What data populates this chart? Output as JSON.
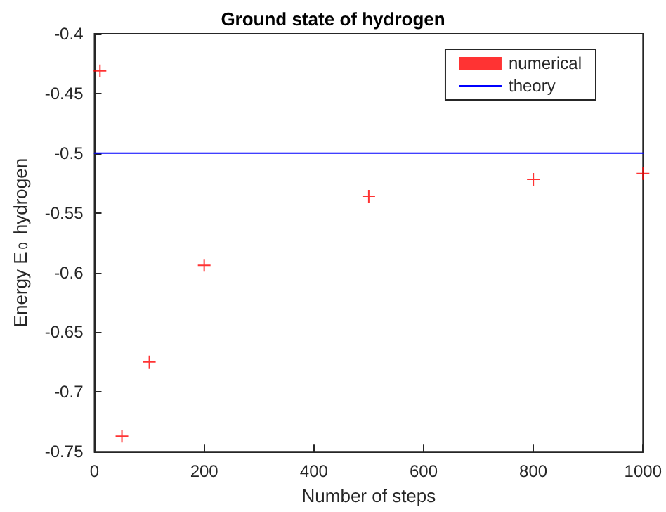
{
  "chart_data": {
    "type": "scatter",
    "title": "Ground state of hydrogen",
    "xlabel": "Number of steps",
    "ylabel": "Energy E$_{0}$ hydrogen",
    "xlim": [
      0,
      1000
    ],
    "xticks": [
      0,
      200,
      400,
      600,
      800,
      1000
    ],
    "ylim": [
      -0.75,
      -0.4
    ],
    "yticks": [
      -0.75,
      -0.7,
      -0.65,
      -0.6,
      -0.55,
      -0.5,
      -0.45,
      -0.4
    ],
    "grid": false,
    "legend": "top right",
    "series": [
      {
        "name": "numerical",
        "marker": "cross",
        "color": "#ff0000",
        "x": [
          10,
          50,
          100,
          200,
          500,
          800,
          1000
        ],
        "values": [
          -0.431,
          -0.737,
          -0.675,
          -0.594,
          -0.536,
          -0.522,
          -0.517
        ]
      },
      {
        "name": "theory",
        "type": "line",
        "marker": "none",
        "line_style": "solid",
        "color": "#0000ff",
        "x": [
          0,
          1000
        ],
        "values": [
          -0.5,
          -0.5
        ]
      }
    ]
  }
}
